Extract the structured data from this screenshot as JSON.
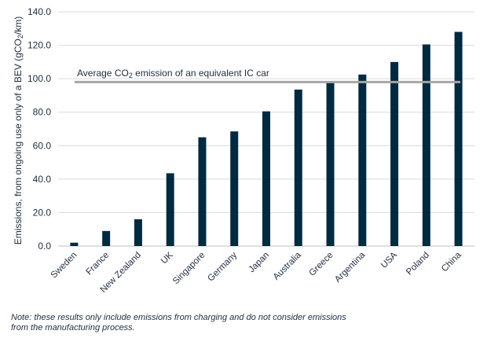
{
  "chart_data": {
    "type": "bar",
    "categories": [
      "Sweden",
      "France",
      "New Zealand",
      "UK",
      "Singapore",
      "Germany",
      "Japan",
      "Australia",
      "Greece",
      "Argentina",
      "USA",
      "Poland",
      "China"
    ],
    "values": [
      2,
      9,
      16,
      43.5,
      65,
      68.5,
      80.5,
      93.5,
      97.5,
      102.5,
      110,
      120.5,
      128
    ],
    "ylabel_pre": "Emissions, from ongoing use only of a BEV (gCO",
    "ylabel_sub": "2",
    "ylabel_post": "/km)",
    "ylim": [
      0,
      140
    ],
    "yticks": [
      "0.0",
      "20.0",
      "40.0",
      "60.0",
      "80.0",
      "100.0",
      "120.0",
      "140.0"
    ],
    "ytick_values": [
      0,
      20,
      40,
      60,
      80,
      100,
      120,
      140
    ],
    "grid": true,
    "bar_color": "#002a40",
    "reference_line": {
      "value": 98,
      "color": "#a6a6a6",
      "label_pre": "Average  CO",
      "label_sub": "2",
      "label_post": " emission of an equivalent IC car"
    }
  },
  "note": {
    "line1": "Note: these results only include emissions from charging and do not consider emissions",
    "line2": "from the manufacturing process."
  }
}
